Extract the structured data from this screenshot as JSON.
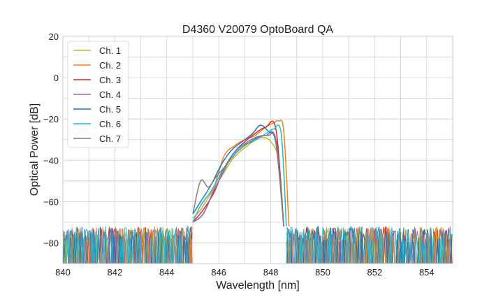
{
  "chart_data": {
    "type": "line",
    "title": "D4360 V20079 OptoBoard QA",
    "xlabel": "Wavelength [nm]",
    "ylabel": "Optical Power [dB]",
    "xlim": [
      840,
      855
    ],
    "ylim": [
      -90,
      20
    ],
    "xticks": [
      840,
      842,
      844,
      846,
      848,
      850,
      852,
      854
    ],
    "yticks": [
      20,
      0,
      -20,
      -40,
      -60,
      -80
    ],
    "grid": true,
    "legend_position": "top-left",
    "noise_floor_db": [
      -90,
      -72
    ],
    "series": [
      {
        "name": "Ch. 1",
        "color": "#bcbd22",
        "x": [
          845.0,
          845.3,
          845.6,
          845.9,
          846.2,
          846.5,
          846.8,
          847.1,
          847.4,
          847.7,
          848.0,
          848.3,
          848.5
        ],
        "y": [
          -68,
          -64,
          -58,
          -52,
          -46,
          -40,
          -36,
          -33,
          -30,
          -29,
          -31,
          -40,
          -72
        ]
      },
      {
        "name": "Ch. 2",
        "color": "#ff7f0e",
        "x": [
          845.0,
          845.4,
          845.8,
          846.2,
          846.6,
          847.0,
          847.4,
          847.8,
          848.1,
          848.3,
          848.5,
          848.7
        ],
        "y": [
          -70,
          -66,
          -54,
          -38,
          -33,
          -30,
          -28,
          -24,
          -22,
          -21,
          -26,
          -72
        ]
      },
      {
        "name": "Ch. 3",
        "color": "#d62728",
        "x": [
          845.0,
          845.4,
          845.8,
          846.2,
          846.6,
          847.0,
          847.4,
          847.8,
          848.2,
          848.5
        ],
        "y": [
          -70,
          -64,
          -56,
          -44,
          -36,
          -31,
          -27,
          -24,
          -25,
          -72
        ]
      },
      {
        "name": "Ch. 4",
        "color": "#9467bd",
        "x": [
          845.0,
          845.4,
          845.8,
          846.2,
          846.6,
          847.0,
          847.4,
          847.8,
          848.2,
          848.5
        ],
        "y": [
          -70,
          -66,
          -55,
          -45,
          -36,
          -32,
          -29,
          -28,
          -30,
          -72
        ]
      },
      {
        "name": "Ch. 5",
        "color": "#1f77b4",
        "x": [
          845.0,
          845.3,
          845.7,
          846.1,
          846.5,
          846.9,
          847.3,
          847.6,
          847.9,
          848.2,
          848.5
        ],
        "y": [
          -66,
          -60,
          -52,
          -42,
          -35,
          -31,
          -27,
          -23,
          -26,
          -32,
          -72
        ]
      },
      {
        "name": "Ch. 6",
        "color": "#17becf",
        "x": [
          845.0,
          845.3,
          845.7,
          846.1,
          846.5,
          846.9,
          847.3,
          847.7,
          848.1,
          848.4,
          848.6
        ],
        "y": [
          -70,
          -62,
          -55,
          -46,
          -38,
          -33,
          -31,
          -28,
          -25,
          -27,
          -72
        ]
      },
      {
        "name": "Ch. 7",
        "color": "#7f7f7f",
        "x": [
          845.0,
          845.3,
          845.6,
          845.9,
          846.3,
          846.7,
          847.1,
          847.5,
          847.9,
          848.2,
          848.5
        ],
        "y": [
          -66,
          -50,
          -53,
          -48,
          -42,
          -36,
          -32,
          -29,
          -28,
          -31,
          -72
        ]
      }
    ]
  }
}
